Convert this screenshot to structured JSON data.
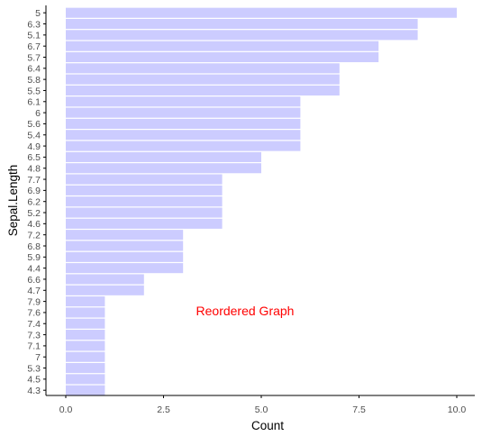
{
  "chart_data": {
    "type": "bar",
    "orientation": "horizontal",
    "xlabel": "Count",
    "ylabel": "Sepal.Length",
    "categories": [
      "5",
      "6.3",
      "5.1",
      "6.7",
      "5.7",
      "6.4",
      "5.8",
      "5.5",
      "6.1",
      "6",
      "5.6",
      "5.4",
      "4.9",
      "6.5",
      "4.8",
      "7.7",
      "6.9",
      "6.2",
      "5.2",
      "4.6",
      "7.2",
      "6.8",
      "5.9",
      "4.4",
      "6.6",
      "4.7",
      "7.9",
      "7.6",
      "7.4",
      "7.3",
      "7.1",
      "7",
      "5.3",
      "4.5",
      "4.3"
    ],
    "values": [
      10,
      9,
      9,
      8,
      8,
      7,
      7,
      7,
      6,
      6,
      6,
      6,
      6,
      5,
      5,
      4,
      4,
      4,
      4,
      4,
      3,
      3,
      3,
      3,
      2,
      2,
      1,
      1,
      1,
      1,
      1,
      1,
      1,
      1,
      1
    ],
    "xlim": [
      0,
      10
    ],
    "xticks": [
      "0.0",
      "2.5",
      "5.0",
      "7.5",
      "10.0"
    ],
    "xtick_values": [
      0,
      2.5,
      5,
      7.5,
      10
    ],
    "bar_color": "#ccccff",
    "annotation": {
      "text": "Reordered Graph",
      "color": "#ff0000",
      "x": 5,
      "y": "6.6"
    },
    "grid": false
  }
}
